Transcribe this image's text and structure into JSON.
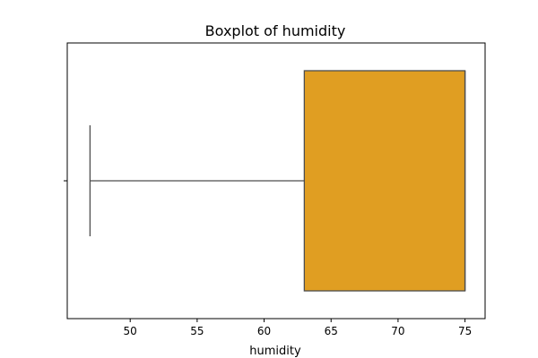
{
  "chart_data": {
    "type": "boxplot",
    "title": "Boxplot of humidity",
    "xlabel": "humidity",
    "ylabel": "",
    "orientation": "horizontal",
    "xlim": [
      45.3,
      76.5
    ],
    "xticks": [
      50,
      55,
      60,
      65,
      70,
      75
    ],
    "box": {
      "min": 47,
      "q1": 63,
      "median": 75,
      "q3": 75,
      "max": 75
    },
    "colors": {
      "box_fill": "#e09e22",
      "line": "#4d4d4d"
    },
    "grid": false,
    "legend": "none"
  }
}
